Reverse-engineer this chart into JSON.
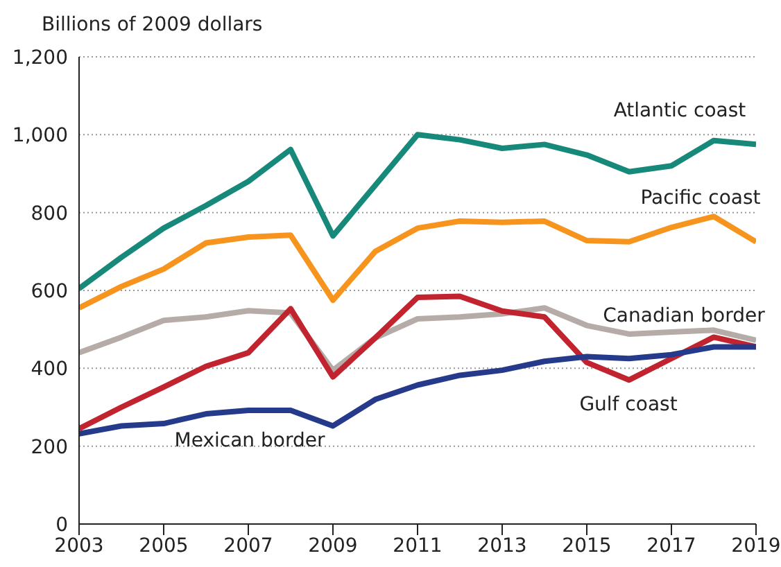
{
  "chart_data": {
    "type": "line",
    "ylabel": "Billions of 2009 dollars",
    "x": [
      2003,
      2004,
      2005,
      2006,
      2007,
      2008,
      2009,
      2010,
      2011,
      2012,
      2013,
      2014,
      2015,
      2016,
      2017,
      2018,
      2019
    ],
    "series": [
      {
        "name": "Atlantic coast",
        "color": "#17897a",
        "values": [
          605,
          685,
          760,
          818,
          880,
          962,
          740,
          870,
          1000,
          987,
          965,
          975,
          948,
          905,
          920,
          985,
          975
        ]
      },
      {
        "name": "Pacific coast",
        "color": "#f7941d",
        "values": [
          555,
          610,
          655,
          722,
          737,
          742,
          575,
          700,
          760,
          778,
          775,
          778,
          728,
          725,
          762,
          790,
          725
        ]
      },
      {
        "name": "Canadian border",
        "color": "#b5aca8",
        "values": [
          440,
          480,
          523,
          532,
          548,
          542,
          395,
          478,
          527,
          532,
          540,
          555,
          510,
          488,
          493,
          498,
          472
        ]
      },
      {
        "name": "Gulf coast",
        "color": "#c1232f",
        "values": [
          245,
          300,
          352,
          405,
          440,
          553,
          378,
          478,
          582,
          585,
          547,
          532,
          415,
          370,
          425,
          480,
          455
        ]
      },
      {
        "name": "Mexican border",
        "color": "#263a8c",
        "values": [
          232,
          252,
          258,
          283,
          292,
          292,
          252,
          320,
          357,
          382,
          395,
          418,
          430,
          425,
          435,
          455,
          455
        ]
      }
    ],
    "xlim": [
      2003,
      2019
    ],
    "xticks": [
      2003,
      2005,
      2007,
      2009,
      2011,
      2013,
      2015,
      2017,
      2019
    ],
    "ylim": [
      0,
      1200
    ],
    "yticks": [
      0,
      200,
      400,
      600,
      800,
      {
        "value": 1000,
        "label": "1,000"
      },
      {
        "value": 1200,
        "label": "1,200"
      }
    ],
    "grid": "y",
    "legend": false,
    "marker": "none",
    "line_style": "solid"
  }
}
